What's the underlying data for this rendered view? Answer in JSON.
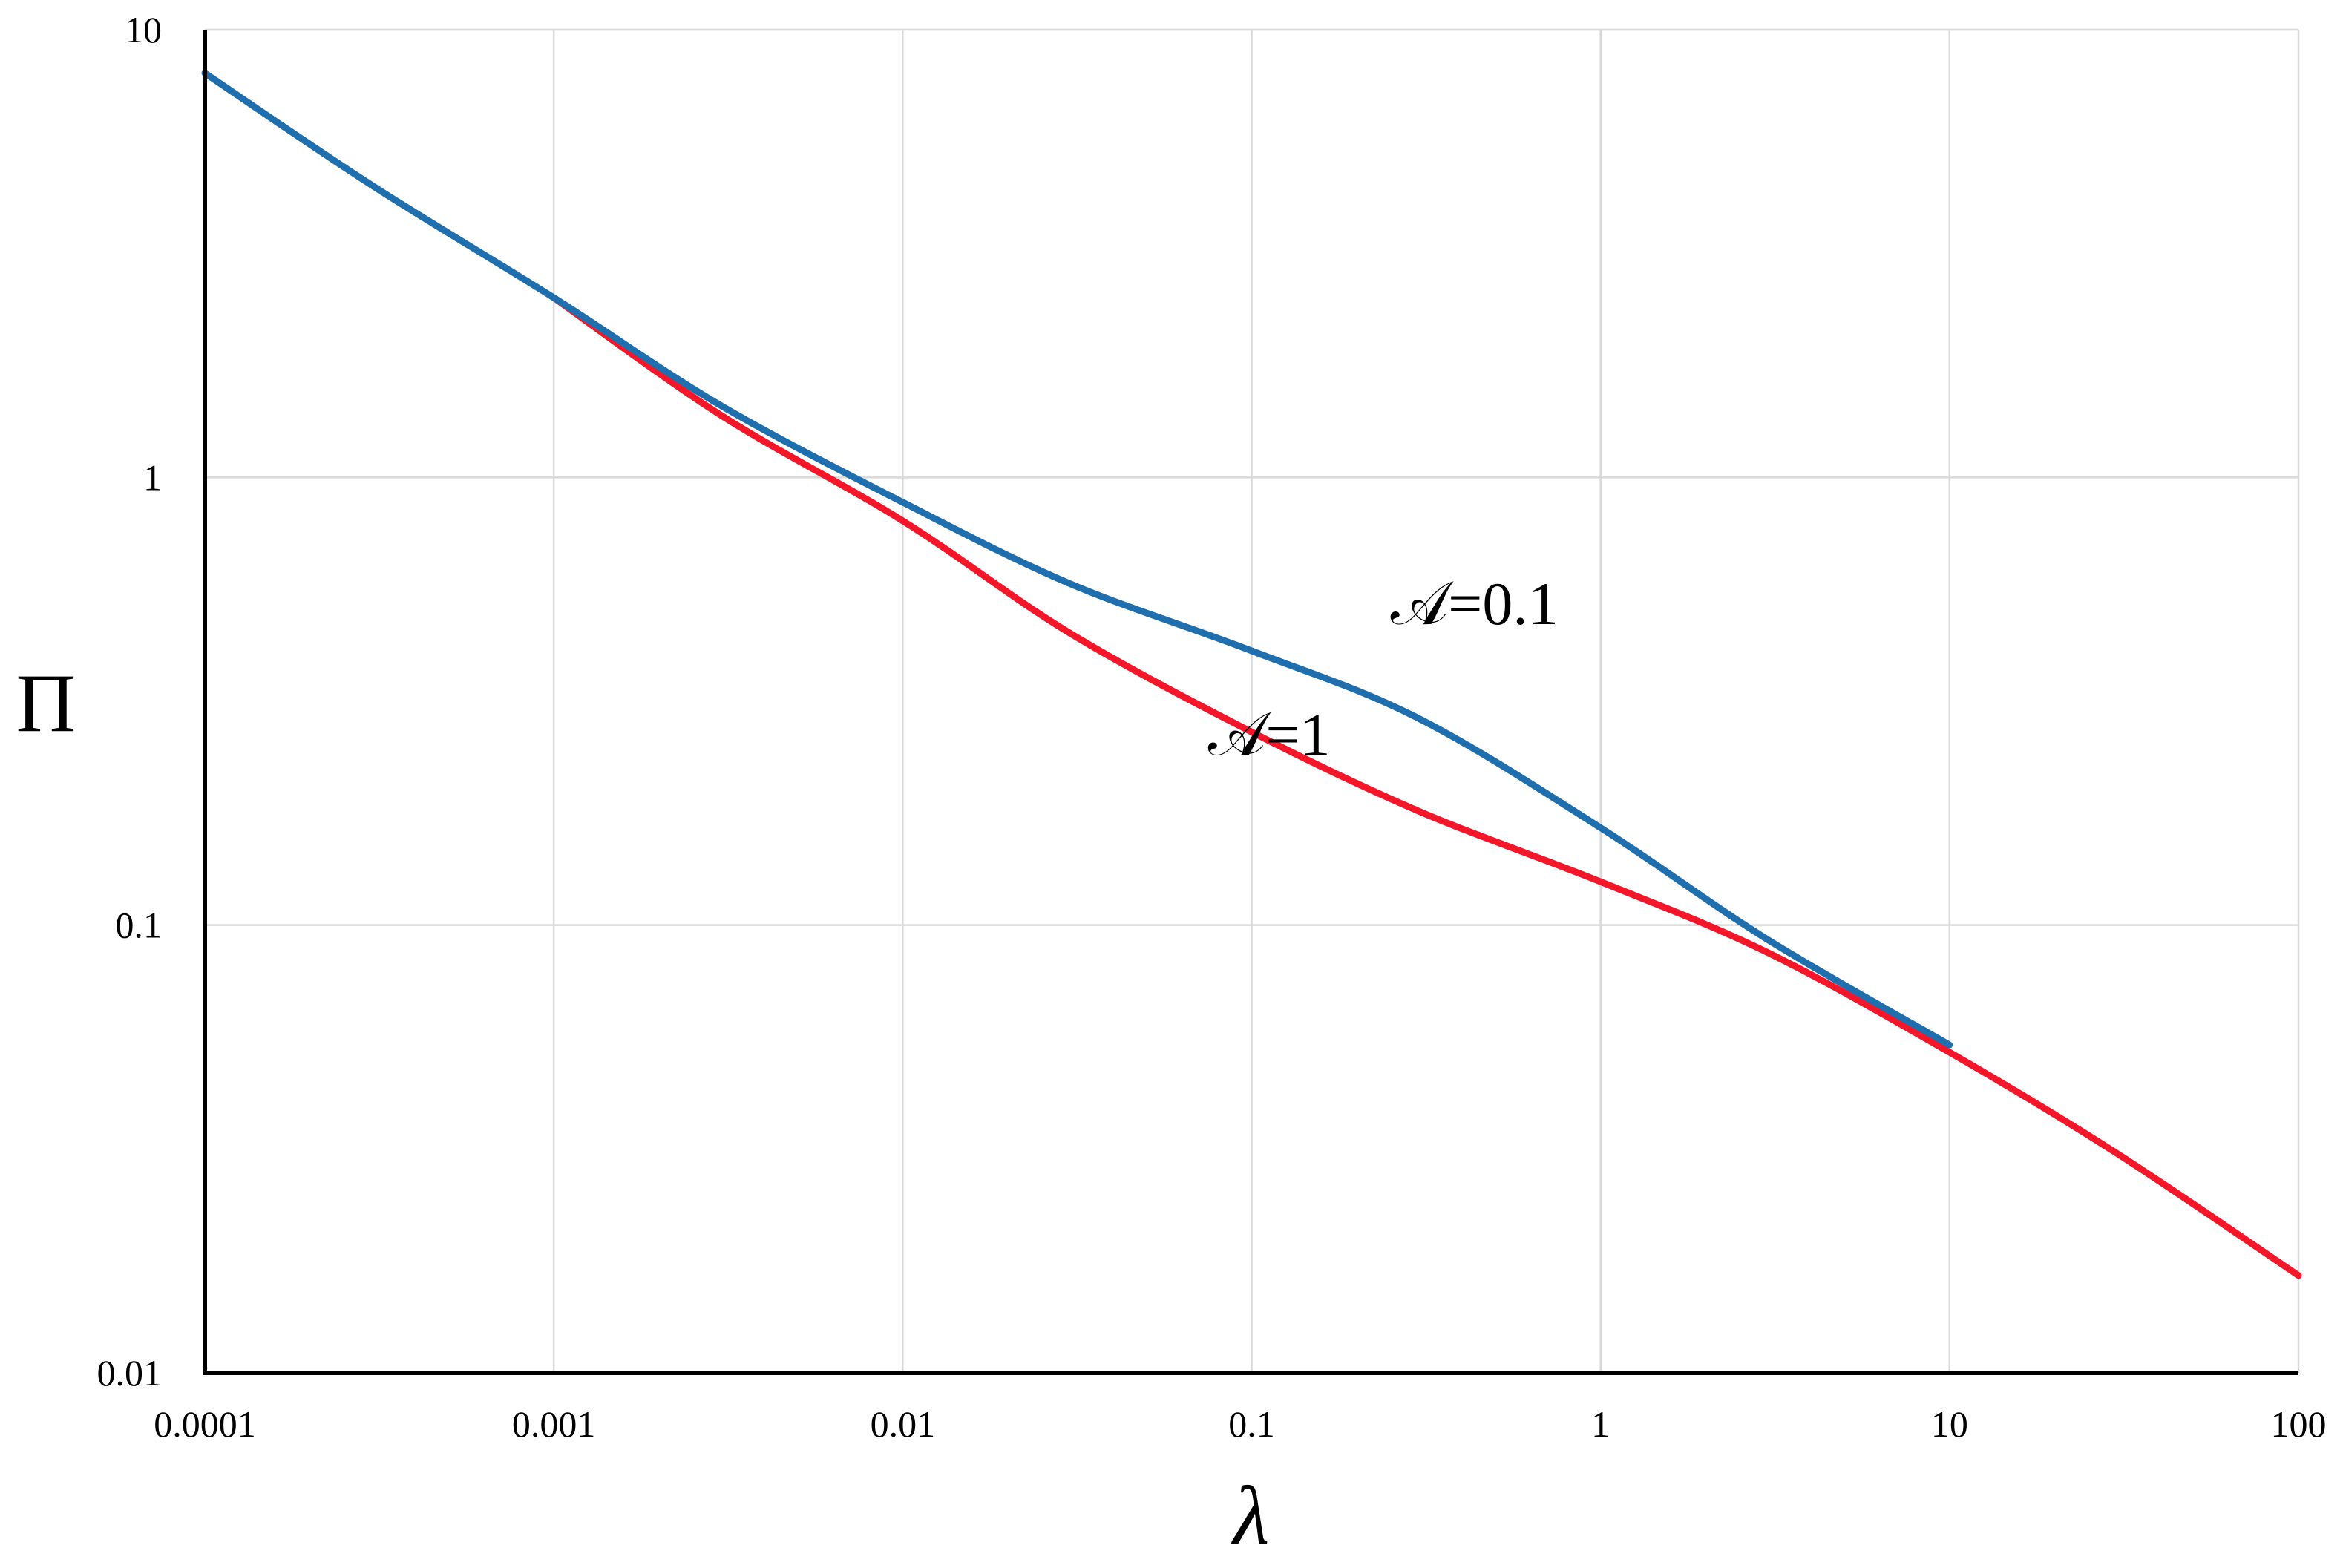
{
  "chart_data": {
    "type": "line",
    "xlabel": "λ",
    "ylabel": "Π",
    "x_scale": "log",
    "y_scale": "log",
    "xlim": [
      0.0001,
      100
    ],
    "ylim": [
      0.01,
      10
    ],
    "x_ticks": [
      "0.0001",
      "0.001",
      "0.01",
      "0.1",
      "1",
      "10",
      "100"
    ],
    "y_ticks": [
      "0.01",
      "0.1",
      "1",
      "10"
    ],
    "grid": true,
    "legend": "none",
    "series": [
      {
        "name": "𝒜=0.1",
        "color": "#1f6fae",
        "x": [
          0.0001,
          0.0003,
          0.001,
          0.003,
          0.01,
          0.03,
          0.1,
          0.3,
          1,
          3,
          10
        ],
        "y": [
          8.0,
          4.5,
          2.52,
          1.45,
          0.88,
          0.58,
          0.41,
          0.29,
          0.165,
          0.093,
          0.054
        ]
      },
      {
        "name": "𝒜=1",
        "color": "#f4172a",
        "x": [
          0.001,
          0.003,
          0.01,
          0.03,
          0.1,
          0.3,
          1,
          3,
          10,
          30,
          100
        ],
        "y": [
          2.52,
          1.38,
          0.8,
          0.45,
          0.27,
          0.18,
          0.125,
          0.087,
          0.052,
          0.031,
          0.0165
        ]
      }
    ],
    "annotations": [
      {
        "text": "𝒜=0.1",
        "x": 0.25,
        "y": 0.47
      },
      {
        "text": "𝒜=1",
        "x": 0.075,
        "y": 0.24
      }
    ]
  }
}
